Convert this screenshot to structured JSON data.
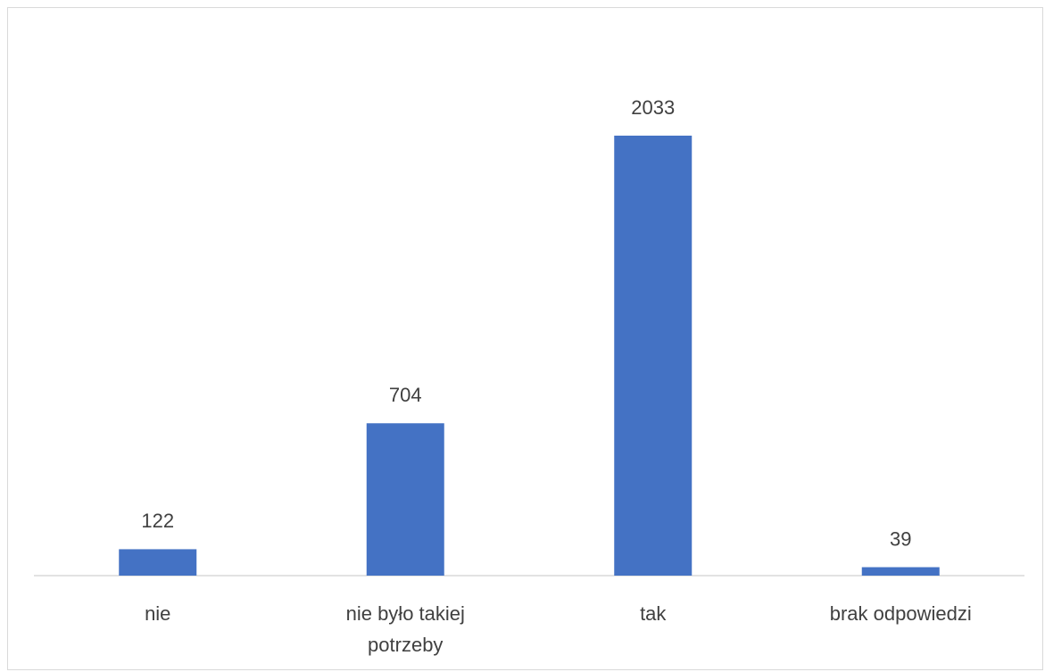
{
  "chart_data": {
    "type": "bar",
    "categories": [
      "nie",
      "nie było takiej potrzeby",
      "tak",
      "brak odpowiedzi"
    ],
    "values": [
      122,
      704,
      2033,
      39
    ],
    "color": "#4472c4"
  }
}
